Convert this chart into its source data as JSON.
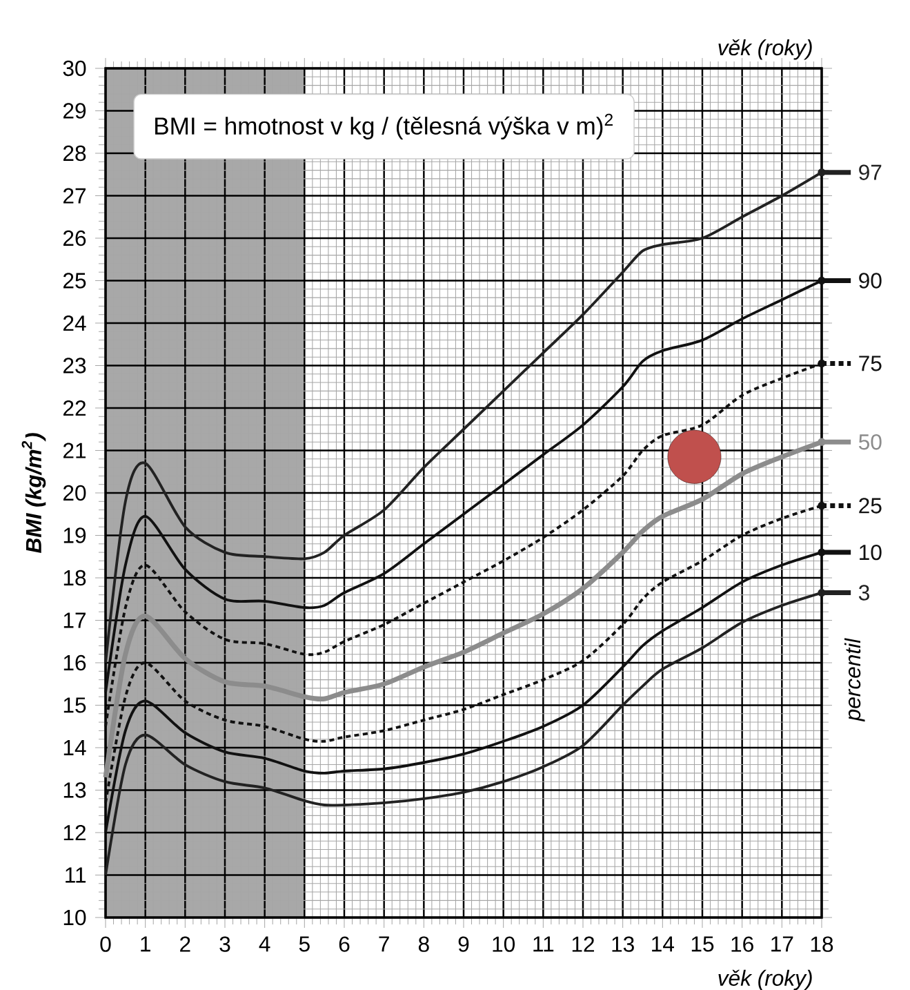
{
  "chart_data": {
    "type": "line",
    "xlabel": "věk (roky)",
    "ylabel": "BMI (kg/m$^{2}$)",
    "legend": "right",
    "annotations": [
      "věk (roky)",
      "percentil",
      "BMI = hmotnost v kg / (tělesná výška v m)$^{2}$"
    ],
    "x": [
      0,
      0.5,
      1,
      2,
      3,
      4,
      5,
      5.5,
      6,
      7,
      8,
      9,
      10,
      11,
      12,
      13,
      13.5,
      14,
      15,
      16,
      17,
      18
    ],
    "xlim": [
      0,
      18
    ],
    "ylim": [
      10,
      30
    ],
    "xticks": [
      0,
      1,
      2,
      3,
      4,
      5,
      6,
      7,
      8,
      9,
      10,
      11,
      12,
      13,
      14,
      15,
      16,
      17,
      18
    ],
    "yticks": [
      10,
      11,
      12,
      13,
      14,
      15,
      16,
      17,
      18,
      19,
      20,
      21,
      22,
      23,
      24,
      25,
      26,
      27,
      28,
      29,
      30
    ],
    "grid": true,
    "bands": [
      {
        "axis": "x",
        "from": 0,
        "to": 5,
        "color": "#a8a8a8"
      }
    ],
    "series": [
      {
        "name": "97",
        "color": "#222222",
        "line_style": "solid",
        "values": [
          16.0,
          19.8,
          20.7,
          19.2,
          18.6,
          18.5,
          18.45,
          18.6,
          19.0,
          19.6,
          20.6,
          21.5,
          22.4,
          23.3,
          24.2,
          25.2,
          25.7,
          25.85,
          26.0,
          26.5,
          27.0,
          27.55
        ]
      },
      {
        "name": "90",
        "color": "#111111",
        "line_style": "solid",
        "values": [
          15.3,
          18.3,
          19.45,
          18.2,
          17.5,
          17.45,
          17.3,
          17.35,
          17.65,
          18.1,
          18.8,
          19.5,
          20.2,
          20.9,
          21.6,
          22.5,
          23.1,
          23.35,
          23.6,
          24.1,
          24.55,
          25.0
        ]
      },
      {
        "name": "75",
        "color": "#111111",
        "line_style": "dashed",
        "values": [
          14.5,
          17.3,
          18.3,
          17.2,
          16.55,
          16.45,
          16.2,
          16.25,
          16.5,
          16.9,
          17.4,
          17.9,
          18.4,
          18.95,
          19.6,
          20.4,
          21.0,
          21.35,
          21.6,
          22.3,
          22.7,
          23.05
        ]
      },
      {
        "name": "50",
        "color": "#8c8c8c",
        "line_style": "solid",
        "values": [
          13.3,
          16.2,
          17.1,
          16.1,
          15.55,
          15.45,
          15.2,
          15.15,
          15.3,
          15.5,
          15.9,
          16.25,
          16.7,
          17.15,
          17.75,
          18.6,
          19.1,
          19.45,
          19.85,
          20.45,
          20.85,
          21.2
        ]
      },
      {
        "name": "25",
        "color": "#111111",
        "line_style": "dashed",
        "values": [
          12.7,
          15.2,
          16.0,
          15.1,
          14.65,
          14.5,
          14.2,
          14.15,
          14.25,
          14.4,
          14.65,
          14.9,
          15.25,
          15.6,
          16.05,
          16.9,
          17.5,
          17.9,
          18.4,
          19.0,
          19.4,
          19.7
        ]
      },
      {
        "name": "10",
        "color": "#111111",
        "line_style": "solid",
        "values": [
          12.0,
          14.4,
          15.1,
          14.35,
          13.9,
          13.75,
          13.45,
          13.4,
          13.45,
          13.5,
          13.65,
          13.85,
          14.15,
          14.5,
          15.0,
          15.9,
          16.4,
          16.75,
          17.3,
          17.9,
          18.3,
          18.6
        ]
      },
      {
        "name": "3",
        "color": "#222222",
        "line_style": "solid",
        "values": [
          11.0,
          13.6,
          14.3,
          13.6,
          13.2,
          13.05,
          12.75,
          12.65,
          12.65,
          12.7,
          12.8,
          12.95,
          13.2,
          13.55,
          14.05,
          15.0,
          15.45,
          15.85,
          16.35,
          16.95,
          17.35,
          17.65
        ]
      },
      {
        "type": "scatter",
        "marker": "circle",
        "color": "#c0504d",
        "x": [
          14.8
        ],
        "values": [
          20.85
        ]
      }
    ]
  }
}
